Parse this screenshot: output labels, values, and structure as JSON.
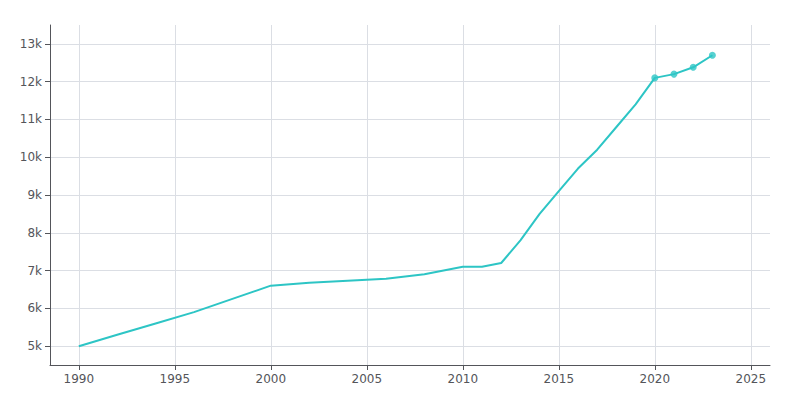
{
  "chart_data": {
    "type": "line",
    "series": [
      {
        "type": "line",
        "color": "#2DC5C5",
        "x": [
          1990,
          1992,
          1994,
          1996,
          1998,
          2000,
          2002,
          2004,
          2006,
          2008,
          2010,
          2011,
          2012,
          2013,
          2014,
          2015,
          2016,
          2017,
          2018,
          2019,
          2020,
          2021,
          2022,
          2023
        ],
        "values": [
          4997,
          5300,
          5600,
          5900,
          6250,
          6600,
          6680,
          6730,
          6780,
          6900,
          7100,
          7100,
          7200,
          7800,
          8500,
          9100,
          9700,
          10200,
          10800,
          11400,
          12100,
          12200,
          12380,
          12700
        ]
      },
      {
        "type": "scatter",
        "color": "#2DC5C5",
        "marker": "circle",
        "x": [
          2020,
          2021,
          2022,
          2023
        ],
        "values": [
          12100,
          12200,
          12380,
          12700
        ]
      }
    ],
    "xlim": [
      1988.5,
      2026
    ],
    "xticks": [
      1990,
      1995,
      2000,
      2005,
      2010,
      2015,
      2020,
      2025
    ],
    "ylim": [
      4500,
      13500
    ],
    "yticks": [
      {
        "value": 5000,
        "label": "5k"
      },
      {
        "value": 6000,
        "label": "6k"
      },
      {
        "value": 7000,
        "label": "7k"
      },
      {
        "value": 8000,
        "label": "8k"
      },
      {
        "value": 9000,
        "label": "9k"
      },
      {
        "value": 10000,
        "label": "10k"
      },
      {
        "value": 11000,
        "label": "11k"
      },
      {
        "value": 12000,
        "label": "12k"
      },
      {
        "value": 13000,
        "label": "13k"
      }
    ],
    "grid": true
  }
}
